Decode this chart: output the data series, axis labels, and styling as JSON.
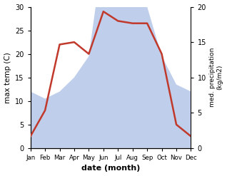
{
  "months": [
    "Jan",
    "Feb",
    "Mar",
    "Apr",
    "May",
    "Jun",
    "Jul",
    "Aug",
    "Sep",
    "Oct",
    "Nov",
    "Dec"
  ],
  "month_x": [
    0,
    1,
    2,
    3,
    4,
    5,
    6,
    7,
    8,
    9,
    10,
    11
  ],
  "temperature": [
    2.5,
    8.0,
    22.0,
    22.5,
    20.0,
    29.0,
    27.0,
    26.5,
    26.5,
    20.0,
    5.0,
    2.5
  ],
  "precipitation": [
    8.0,
    7.0,
    8.0,
    10.0,
    13.0,
    28.0,
    24.0,
    26.0,
    20.0,
    13.0,
    9.0,
    8.0
  ],
  "temp_color": "#c0392b",
  "precip_color": "#b8c9e8",
  "xlabel": "date (month)",
  "ylabel_left": "max temp (C)",
  "ylabel_right": "med. precipitation\n(kg/m2)",
  "ylim_left": [
    0,
    30
  ],
  "ylim_right": [
    0,
    20
  ],
  "bg_color": "#ffffff",
  "temp_linewidth": 1.8,
  "right_yticks": [
    0,
    5,
    10,
    15,
    20
  ],
  "left_yticks": [
    0,
    5,
    10,
    15,
    20,
    25,
    30
  ]
}
